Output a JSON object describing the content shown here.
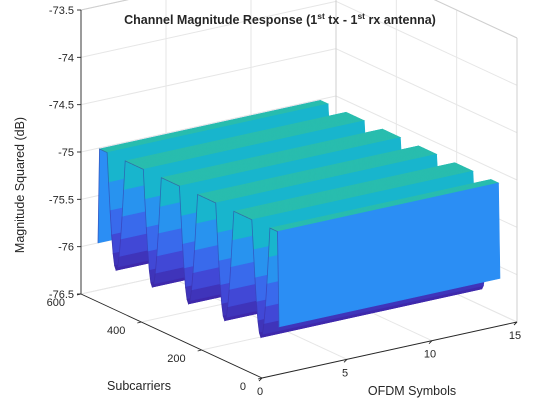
{
  "chart_data": {
    "type": "surface",
    "title": {
      "part1": "Channel Magnitude Response (1",
      "sup1": "st",
      "part2": " tx - 1",
      "sup2": "st",
      "part3": " rx antenna)"
    },
    "xlabel": "OFDM Symbols",
    "ylabel": "Subcarriers",
    "zlabel": "Magnitude Squared (dB)",
    "xlim": [
      0,
      15
    ],
    "ylim": [
      0,
      600
    ],
    "zlim": [
      -76.5,
      -73.5
    ],
    "xticks": [
      "0",
      "5",
      "10",
      "15"
    ],
    "yticks": [
      "0",
      "200",
      "400",
      "600"
    ],
    "zticks": [
      "-73.5",
      "-74",
      "-74.5",
      "-75",
      "-75.5",
      "-76",
      "-76.5"
    ],
    "grid": true,
    "colormap": "parula",
    "colormap_stops": [
      "#3e26a8",
      "#4254e6",
      "#2c8cf6",
      "#16b4d0",
      "#3bc58c",
      "#a7bf3c",
      "#f1b937",
      "#f9e01c"
    ],
    "x": [
      1,
      14
    ],
    "subcarrier_range": [
      0,
      600
    ],
    "peaks": [
      {
        "subcarrier": 120,
        "magnitude_db": -73.8
      },
      {
        "subcarrier": 240,
        "magnitude_db": -73.8
      },
      {
        "subcarrier": 360,
        "magnitude_db": -73.8
      },
      {
        "subcarrier": 480,
        "magnitude_db": -73.8
      }
    ],
    "troughs": [
      {
        "subcarrier": 0,
        "magnitude_db": -76.0
      },
      {
        "subcarrier": 60,
        "magnitude_db": -76.2
      },
      {
        "subcarrier": 180,
        "magnitude_db": -76.2
      },
      {
        "subcarrier": 300,
        "magnitude_db": -76.2
      },
      {
        "subcarrier": 420,
        "magnitude_db": -76.2
      },
      {
        "subcarrier": 540,
        "magnitude_db": -76.2
      },
      {
        "subcarrier": 600,
        "magnitude_db": -76.0
      }
    ]
  }
}
